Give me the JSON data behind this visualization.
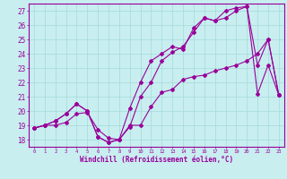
{
  "title": "",
  "xlabel": "Windchill (Refroidissement éolien,°C)",
  "ylabel": "",
  "xlim": [
    -0.5,
    23.5
  ],
  "ylim": [
    17.5,
    27.5
  ],
  "yticks": [
    18,
    19,
    20,
    21,
    22,
    23,
    24,
    25,
    26,
    27
  ],
  "xticks": [
    0,
    1,
    2,
    3,
    4,
    5,
    6,
    7,
    8,
    9,
    10,
    11,
    12,
    13,
    14,
    15,
    16,
    17,
    18,
    19,
    20,
    21,
    22,
    23
  ],
  "bg_color": "#c8eef0",
  "grid_color": "#aadddd",
  "line_color": "#990099",
  "line1_x": [
    0,
    1,
    2,
    3,
    4,
    5,
    6,
    7,
    8,
    9,
    10,
    11,
    12,
    13,
    14,
    15,
    16,
    17,
    18,
    19,
    20,
    21,
    22,
    23
  ],
  "line1_y": [
    18.8,
    19.0,
    19.0,
    19.2,
    19.8,
    19.9,
    18.7,
    18.1,
    18.0,
    19.0,
    19.0,
    20.3,
    21.3,
    21.5,
    22.2,
    22.4,
    22.5,
    22.8,
    23.0,
    23.2,
    23.5,
    24.0,
    25.0,
    21.1
  ],
  "line2_x": [
    0,
    1,
    2,
    3,
    4,
    5,
    6,
    7,
    8,
    9,
    10,
    11,
    12,
    13,
    14,
    15,
    16,
    17,
    18,
    19,
    20,
    21,
    22,
    23
  ],
  "line2_y": [
    18.8,
    19.0,
    19.3,
    19.8,
    20.5,
    20.0,
    18.2,
    17.8,
    18.0,
    18.9,
    21.0,
    22.0,
    23.5,
    24.1,
    24.5,
    25.5,
    26.5,
    26.3,
    26.5,
    27.0,
    27.3,
    23.2,
    25.0,
    21.1
  ],
  "line3_x": [
    0,
    1,
    2,
    3,
    4,
    5,
    6,
    7,
    8,
    9,
    10,
    11,
    12,
    13,
    14,
    15,
    16,
    17,
    18,
    19,
    20,
    21,
    22,
    23
  ],
  "line3_y": [
    18.8,
    19.0,
    19.3,
    19.8,
    20.5,
    20.0,
    18.2,
    17.8,
    18.0,
    20.2,
    22.0,
    23.5,
    24.0,
    24.5,
    24.3,
    25.8,
    26.5,
    26.3,
    27.0,
    27.2,
    27.3,
    21.2,
    23.2,
    21.1
  ]
}
